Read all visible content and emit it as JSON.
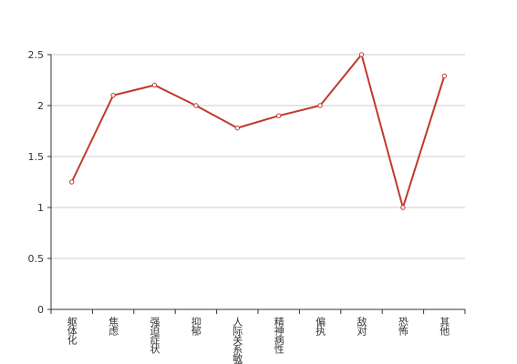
{
  "chart_data": {
    "type": "line",
    "categories": [
      "躯体化",
      "焦虑",
      "强迫症状",
      "抑郁",
      "人际关系敏感",
      "精神病性",
      "偏执",
      "敌对",
      "恐怖",
      "其他"
    ],
    "values": [
      1.25,
      2.1,
      2.2,
      2.0,
      1.78,
      1.9,
      2.0,
      2.5,
      1.0,
      2.29
    ],
    "color": "#c0392b",
    "ylim": [
      0,
      2.5
    ],
    "yticks": [
      0,
      0.5,
      1,
      1.5,
      2,
      2.5
    ],
    "grid": true
  }
}
